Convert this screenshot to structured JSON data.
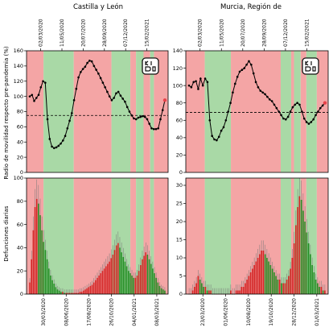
{
  "ylabel_top": "Radio de movilidad respecto pre-pandemia (%)",
  "ylabel_bottom": "Defunciones diarias",
  "logo_text": "KIDO",
  "colors": {
    "red_band": "#f4a5a5",
    "green_band": "#a9d9a6",
    "line": "#000000",
    "last_point": "#e8424a",
    "death_red": "#d21f1f",
    "death_green": "#1e8a1e",
    "death_err": "#777777"
  },
  "top_date_ticks": [
    "02/03/2020",
    "11/05/2020",
    "20/07/2020",
    "28/09/2020",
    "07/12/2020",
    "15/02/2021"
  ],
  "chart_data": [
    {
      "type": "line",
      "title": "Castilla y León",
      "ylim": [
        0,
        160
      ],
      "yticks": [
        0,
        20,
        40,
        60,
        80,
        100,
        120,
        140,
        160
      ],
      "threshold": 75,
      "bands": [
        [
          "red",
          0,
          36
        ],
        [
          "green",
          36,
          100
        ],
        [
          "red",
          100,
          180
        ],
        [
          "green",
          180,
          220
        ],
        [
          "red",
          220,
          232
        ],
        [
          "green",
          232,
          248
        ],
        [
          "red",
          248,
          262
        ],
        [
          "green",
          262,
          270
        ],
        [
          "red",
          270,
          300
        ]
      ],
      "values": [
        100,
        102,
        94,
        98,
        102,
        112,
        120,
        118,
        70,
        44,
        34,
        32,
        33,
        35,
        38,
        42,
        48,
        58,
        68,
        78,
        95,
        110,
        125,
        132,
        136,
        139,
        144,
        147,
        146,
        140,
        135,
        130,
        124,
        118,
        112,
        106,
        100,
        95,
        98,
        104,
        106,
        101,
        97,
        93,
        86,
        80,
        75,
        71,
        70,
        72,
        73,
        74,
        73,
        70,
        64,
        58,
        57,
        57,
        58,
        70,
        82,
        95
      ]
    },
    {
      "type": "line",
      "title": "Murcia, Región de",
      "ylim": [
        0,
        140
      ],
      "yticks": [
        0,
        20,
        40,
        60,
        80,
        100,
        120,
        140
      ],
      "threshold": 69,
      "bands": [
        [
          "red",
          0,
          40
        ],
        [
          "green",
          40,
          95
        ],
        [
          "red",
          95,
          200
        ],
        [
          "green",
          200,
          222
        ],
        [
          "red",
          222,
          228
        ],
        [
          "green",
          228,
          242
        ],
        [
          "red",
          242,
          254
        ],
        [
          "green",
          254,
          276
        ],
        [
          "red",
          276,
          300
        ]
      ],
      "values": [
        100,
        98,
        104,
        105,
        96,
        108,
        100,
        108,
        104,
        60,
        42,
        38,
        37,
        41,
        48,
        52,
        60,
        70,
        80,
        92,
        102,
        110,
        116,
        118,
        120,
        124,
        128,
        124,
        114,
        104,
        98,
        94,
        92,
        90,
        87,
        84,
        82,
        78,
        74,
        70,
        66,
        62,
        61,
        64,
        70,
        75,
        78,
        80,
        78,
        70,
        62,
        58,
        56,
        58,
        61,
        66,
        70,
        74,
        77,
        80
      ]
    },
    {
      "type": "bar",
      "title": "",
      "ylim": [
        0,
        100
      ],
      "yticks": [
        0,
        20,
        40,
        60,
        80,
        100
      ],
      "date_ticks": [
        "30/03/2020",
        "08/06/2020",
        "17/08/2020",
        "26/10/2020",
        "04/01/2021",
        "08/03/2021"
      ],
      "bands": [
        [
          "red",
          0,
          36
        ],
        [
          "green",
          36,
          100
        ],
        [
          "red",
          100,
          180
        ],
        [
          "green",
          180,
          220
        ],
        [
          "red",
          220,
          232
        ],
        [
          "green",
          232,
          248
        ],
        [
          "red",
          248,
          262
        ],
        [
          "green",
          262,
          270
        ],
        [
          "red",
          270,
          300
        ]
      ],
      "values": [
        10,
        30,
        55,
        75,
        82,
        78,
        68,
        55,
        45,
        38,
        30,
        22,
        16,
        12,
        9,
        6,
        4,
        3,
        2,
        2,
        1,
        1,
        1,
        1,
        1,
        1,
        1,
        1,
        1,
        2,
        2,
        3,
        4,
        5,
        6,
        7,
        8,
        10,
        12,
        14,
        16,
        18,
        20,
        22,
        24,
        26,
        28,
        31,
        34,
        38,
        42,
        44,
        40,
        36,
        32,
        28,
        24,
        20,
        18,
        16,
        14,
        14,
        16,
        20,
        25,
        30,
        33,
        36,
        34,
        30,
        26,
        22,
        18,
        14,
        10,
        7,
        5,
        4,
        3
      ]
    },
    {
      "type": "bar",
      "title": "",
      "ylim": [
        0,
        32
      ],
      "yticks": [
        0,
        5,
        10,
        15,
        20,
        25,
        30
      ],
      "date_ticks": [
        "23/03/2020",
        "01/06/2020",
        "10/08/2020",
        "19/10/2020",
        "28/12/2020",
        "01/03/2021"
      ],
      "bands": [
        [
          "red",
          0,
          40
        ],
        [
          "green",
          40,
          95
        ],
        [
          "red",
          95,
          200
        ],
        [
          "green",
          200,
          222
        ],
        [
          "red",
          222,
          228
        ],
        [
          "green",
          228,
          242
        ],
        [
          "red",
          242,
          254
        ],
        [
          "green",
          254,
          276
        ],
        [
          "red",
          276,
          300
        ]
      ],
      "values": [
        0,
        0,
        1,
        2,
        3,
        5,
        4,
        3,
        2,
        2,
        1,
        1,
        1,
        0,
        0,
        0,
        0,
        0,
        0,
        0,
        0,
        0,
        0,
        1,
        0,
        0,
        1,
        1,
        1,
        2,
        2,
        3,
        4,
        5,
        6,
        7,
        8,
        9,
        10,
        11,
        12,
        12,
        11,
        10,
        9,
        8,
        7,
        6,
        5,
        4,
        4,
        3,
        3,
        3,
        4,
        5,
        7,
        10,
        14,
        19,
        24,
        27,
        26,
        23,
        20,
        17,
        14,
        11,
        8,
        6,
        4,
        3,
        2,
        2,
        1,
        1
      ]
    }
  ]
}
